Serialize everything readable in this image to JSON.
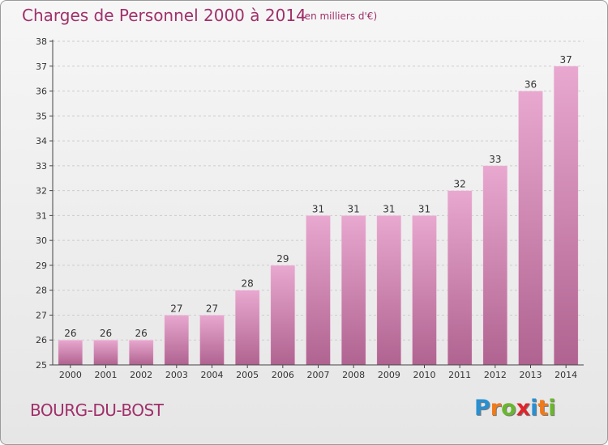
{
  "title": "Charges de Personnel 2000 à 2014",
  "subtitle": "(en milliers d'€)",
  "place_name": "BOURG-DU-BOST",
  "logo": {
    "letters": [
      "P",
      "r",
      "o",
      "x",
      "i",
      "t",
      "i"
    ],
    "colors": [
      "#2a8fd0",
      "#f07a1a",
      "#6ab72e",
      "#e0242a",
      "#2a8fd0",
      "#f07a1a",
      "#6ab72e"
    ]
  },
  "colors": {
    "title": "#a0306a",
    "bar_top": "#e8a8cf",
    "bar_bottom": "#b06390",
    "grid": "#cccccc",
    "axis": "#444444"
  },
  "chart_data": {
    "type": "bar",
    "categories": [
      "2000",
      "2001",
      "2002",
      "2003",
      "2004",
      "2005",
      "2006",
      "2007",
      "2008",
      "2009",
      "2010",
      "2011",
      "2012",
      "2013",
      "2014"
    ],
    "values": [
      26,
      26,
      26,
      27,
      27,
      28,
      29,
      31,
      31,
      31,
      31,
      32,
      33,
      36,
      37
    ],
    "ylim": [
      25,
      38
    ],
    "yticks": [
      25,
      26,
      27,
      28,
      29,
      30,
      31,
      32,
      33,
      34,
      35,
      36,
      37,
      38
    ],
    "grid": true,
    "xlabel": "",
    "ylabel": ""
  }
}
